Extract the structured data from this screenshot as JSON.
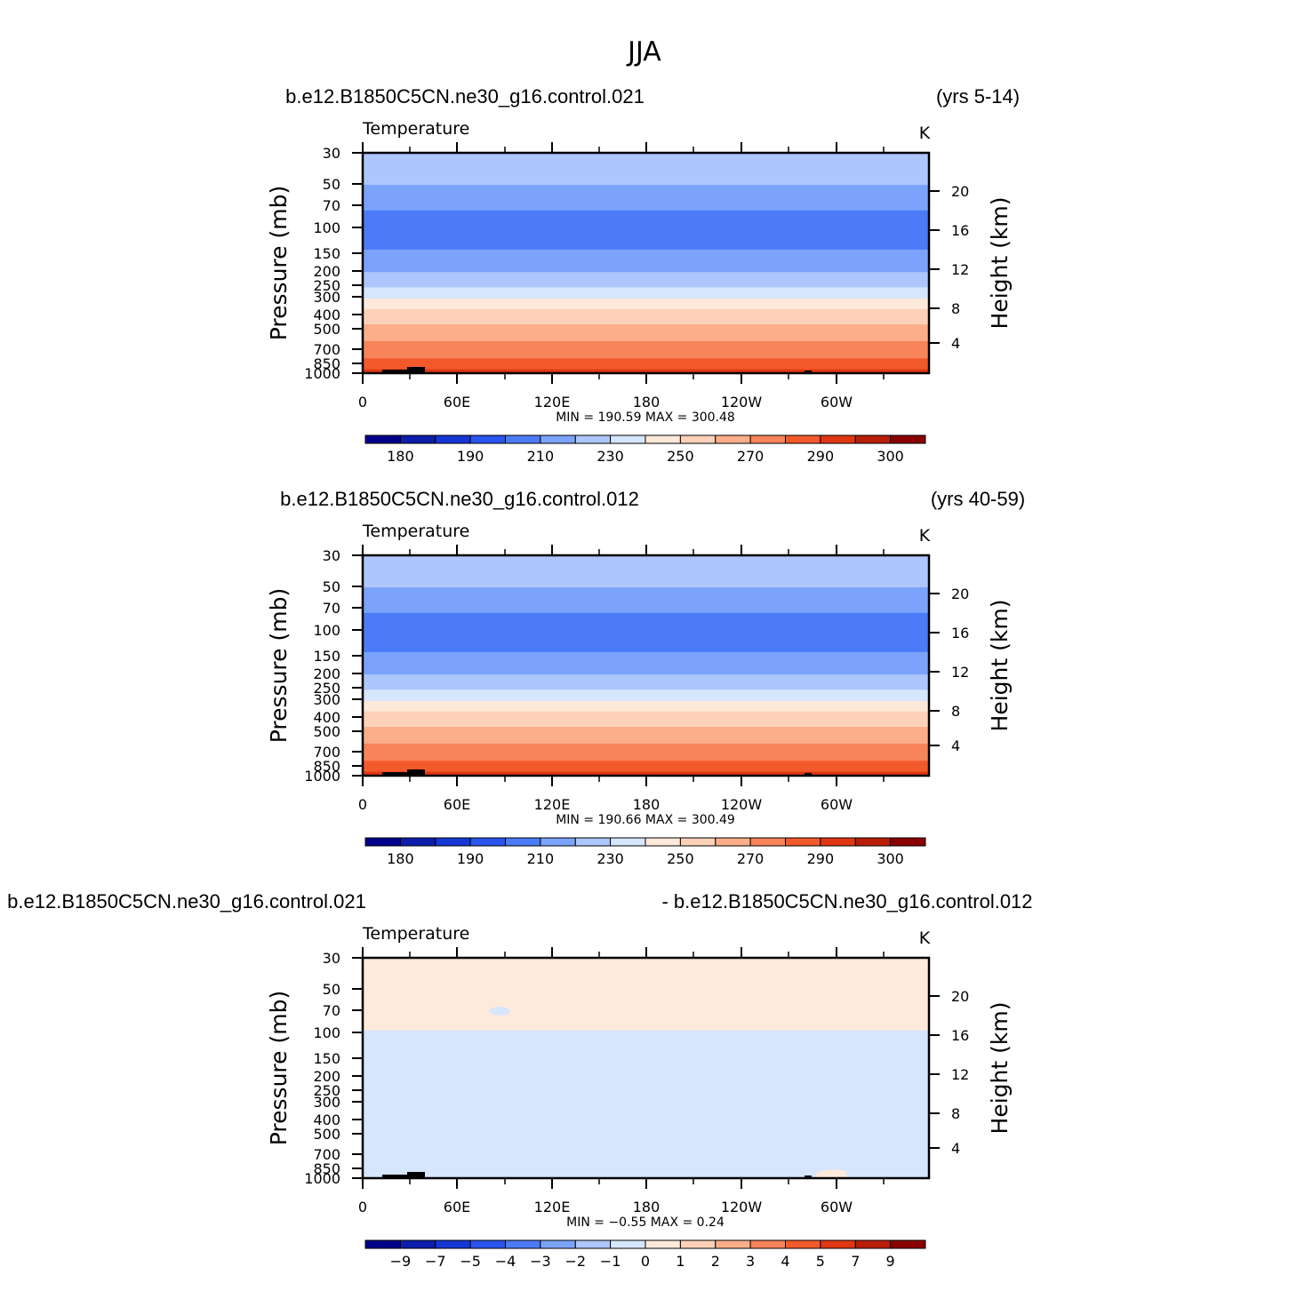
{
  "figure_title": "JJA",
  "chart_data": [
    {
      "type": "heatmap",
      "case_label": "b.e12.B1850C5CN.ne30_g16.control.021",
      "years_label": "(yrs 5-14)",
      "variable": "Temperature",
      "units": "K",
      "ylabel": "Pressure  (mb)",
      "ylabel_right": "Height  (km)",
      "x_ticks": [
        "0",
        "60E",
        "120E",
        "180",
        "120W",
        "60W"
      ],
      "y_ticks": [
        "30",
        "50",
        "70",
        "100",
        "150",
        "200",
        "250",
        "300",
        "400",
        "500",
        "700",
        "850",
        "1000"
      ],
      "y_ticks_right": [
        "20",
        "16",
        "12",
        "8",
        "4"
      ],
      "ylim": [
        1000,
        30
      ],
      "y_scale": "log",
      "stats": "MIN =  190.59   MAX =  300.48",
      "min": 190.59,
      "max": 300.48,
      "bands": [
        {
          "p": [
            30,
            50
          ],
          "value": 220
        },
        {
          "p": [
            50,
            75
          ],
          "value": 210
        },
        {
          "p": [
            75,
            140
          ],
          "value": 200
        },
        {
          "p": [
            140,
            200
          ],
          "value": 210
        },
        {
          "p": [
            200,
            255
          ],
          "value": 220
        },
        {
          "p": [
            255,
            305
          ],
          "value": 230
        },
        {
          "p": [
            305,
            360
          ],
          "value": 240
        },
        {
          "p": [
            360,
            460
          ],
          "value": 250
        },
        {
          "p": [
            460,
            600
          ],
          "value": 260
        },
        {
          "p": [
            600,
            790
          ],
          "value": 270
        },
        {
          "p": [
            790,
            940
          ],
          "value": 280
        },
        {
          "p": [
            940,
            1000
          ],
          "value": 290
        }
      ],
      "colorbar_labels": [
        "180",
        "190",
        "210",
        "230",
        "250",
        "270",
        "290",
        "300"
      ]
    },
    {
      "type": "heatmap",
      "case_label": "b.e12.B1850C5CN.ne30_g16.control.012",
      "years_label": "(yrs 40-59)",
      "variable": "Temperature",
      "units": "K",
      "ylabel": "Pressure  (mb)",
      "ylabel_right": "Height  (km)",
      "x_ticks": [
        "0",
        "60E",
        "120E",
        "180",
        "120W",
        "60W"
      ],
      "y_ticks": [
        "30",
        "50",
        "70",
        "100",
        "150",
        "200",
        "250",
        "300",
        "400",
        "500",
        "700",
        "850",
        "1000"
      ],
      "y_ticks_right": [
        "20",
        "16",
        "12",
        "8",
        "4"
      ],
      "ylim": [
        1000,
        30
      ],
      "y_scale": "log",
      "stats": "MIN =  190.66   MAX =  300.49",
      "min": 190.66,
      "max": 300.49,
      "bands": [
        {
          "p": [
            30,
            50
          ],
          "value": 220
        },
        {
          "p": [
            50,
            75
          ],
          "value": 210
        },
        {
          "p": [
            75,
            140
          ],
          "value": 200
        },
        {
          "p": [
            140,
            200
          ],
          "value": 210
        },
        {
          "p": [
            200,
            255
          ],
          "value": 220
        },
        {
          "p": [
            255,
            305
          ],
          "value": 230
        },
        {
          "p": [
            305,
            360
          ],
          "value": 240
        },
        {
          "p": [
            360,
            460
          ],
          "value": 250
        },
        {
          "p": [
            460,
            600
          ],
          "value": 260
        },
        {
          "p": [
            600,
            790
          ],
          "value": 270
        },
        {
          "p": [
            790,
            940
          ],
          "value": 280
        },
        {
          "p": [
            940,
            1000
          ],
          "value": 290
        }
      ],
      "colorbar_labels": [
        "180",
        "190",
        "210",
        "230",
        "250",
        "270",
        "290",
        "300"
      ]
    },
    {
      "type": "heatmap",
      "case_label": "b.e12.B1850C5CN.ne30_g16.control.021",
      "years_label": "- b.e12.B1850C5CN.ne30_g16.control.012",
      "variable": "Temperature",
      "units": "K",
      "ylabel": "Pressure  (mb)",
      "ylabel_right": "Height  (km)",
      "x_ticks": [
        "0",
        "60E",
        "120E",
        "180",
        "120W",
        "60W"
      ],
      "y_ticks": [
        "30",
        "50",
        "70",
        "100",
        "150",
        "200",
        "250",
        "300",
        "400",
        "500",
        "700",
        "850",
        "1000"
      ],
      "y_ticks_right": [
        "20",
        "16",
        "12",
        "8",
        "4"
      ],
      "ylim": [
        1000,
        30
      ],
      "y_scale": "log",
      "stats": "MIN =   −0.55   MAX =    0.24",
      "min": -0.55,
      "max": 0.24,
      "bands": [
        {
          "p": [
            30,
            95
          ],
          "value": 0.5
        },
        {
          "p": [
            95,
            1000
          ],
          "value": -0.5
        }
      ],
      "colorbar_labels": [
        "−9",
        "−7",
        "−5",
        "−4",
        "−3",
        "−2",
        "−1",
        "0",
        "1",
        "2",
        "3",
        "4",
        "5",
        "7",
        "9"
      ]
    }
  ],
  "colors": {
    "temperature_palette": [
      "#00008b",
      "#0d1eab",
      "#1637d4",
      "#2a55ee",
      "#4b7bf7",
      "#7ba3fb",
      "#adc6fc",
      "#d6e6fd",
      "#fde9d9",
      "#fcd1b8",
      "#fbae89",
      "#f7845a",
      "#f35a2b",
      "#e03712",
      "#b81e08",
      "#8b0000"
    ],
    "difference_palette": [
      "#00008b",
      "#0d1eab",
      "#1637d4",
      "#2a55ee",
      "#4b7bf7",
      "#7ba3fb",
      "#adc6fc",
      "#d6e6fd",
      "#feeadb",
      "#fcd1b8",
      "#fbae89",
      "#f7845a",
      "#f35a2b",
      "#e03712",
      "#b81e08",
      "#8b0000"
    ],
    "topography": "#000000"
  }
}
